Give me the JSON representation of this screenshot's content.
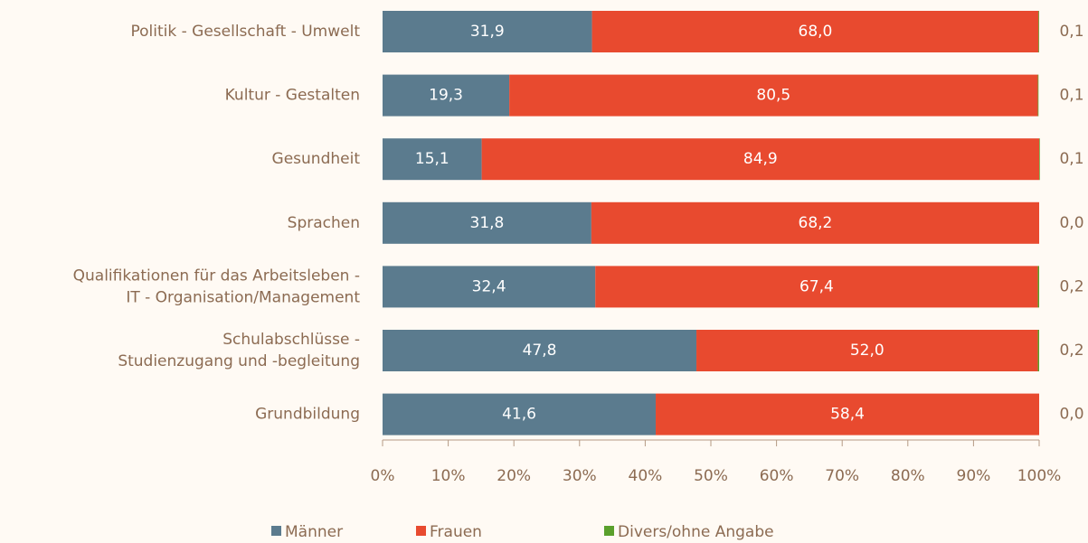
{
  "chart_data": {
    "type": "stacked_barh",
    "categories": [
      "Politik - Gesellschaft - Umwelt",
      "Kultur - Gestalten",
      "Gesundheit",
      "Sprachen",
      "Qualifikationen für das Arbeitsleben -\nIT - Organisation/Management",
      "Schulabschlüsse -\nStudienzugang und -begleitung",
      "Grundbildung"
    ],
    "series": [
      {
        "name": "Männer",
        "color": "#5b7b8e",
        "values": [
          31.9,
          19.3,
          15.1,
          31.8,
          32.4,
          47.8,
          41.6
        ],
        "value_labels": [
          "31,9",
          "19,3",
          "15,1",
          "31,8",
          "32,4",
          "47,8",
          "41,6"
        ]
      },
      {
        "name": "Frauen",
        "color": "#e84a2f",
        "values": [
          68.0,
          80.5,
          84.9,
          68.2,
          67.4,
          52.0,
          58.4
        ],
        "value_labels": [
          "68,0",
          "80,5",
          "84,9",
          "68,2",
          "67,4",
          "52,0",
          "58,4"
        ]
      },
      {
        "name": "Divers/ohne Angabe",
        "color": "#5aa02c",
        "values": [
          0.1,
          0.1,
          0.1,
          0.0,
          0.2,
          0.2,
          0.0
        ],
        "value_labels": [
          "0,1",
          "0,1",
          "0,1",
          "0,0",
          "0,2",
          "0,2",
          "0,0"
        ]
      }
    ],
    "xlim": [
      0,
      100
    ],
    "xticks": [
      {
        "value": 0,
        "label": "0%"
      },
      {
        "value": 10,
        "label": "10%"
      },
      {
        "value": 20,
        "label": "20%"
      },
      {
        "value": 30,
        "label": "30%"
      },
      {
        "value": 40,
        "label": "40%"
      },
      {
        "value": 50,
        "label": "50%"
      },
      {
        "value": 60,
        "label": "60%"
      },
      {
        "value": 70,
        "label": "70%"
      },
      {
        "value": 80,
        "label": "80%"
      },
      {
        "value": 90,
        "label": "90%"
      },
      {
        "value": 100,
        "label": "100%"
      }
    ],
    "legend": "bottom"
  }
}
